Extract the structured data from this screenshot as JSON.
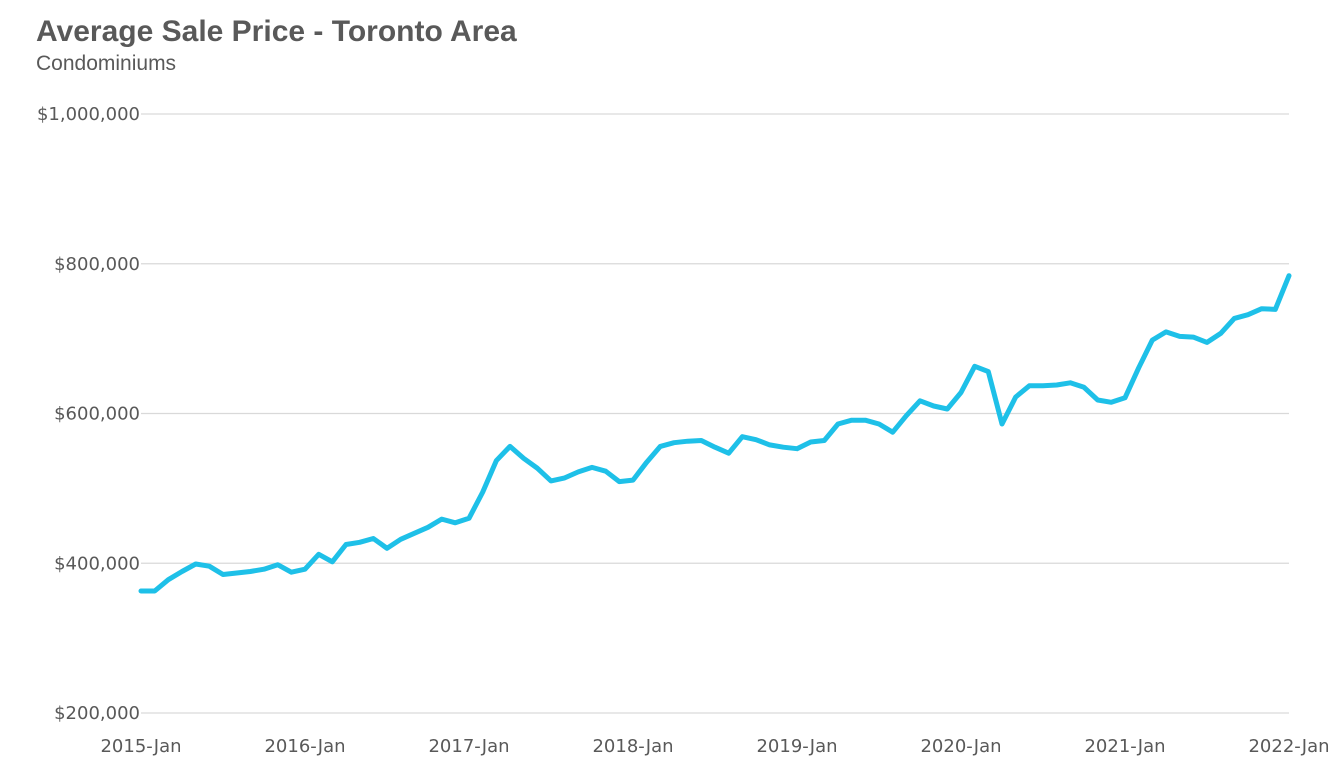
{
  "chart_data": {
    "type": "line",
    "title": "Average Sale Price - Toronto Area",
    "subtitle": "Condominiums",
    "xlabel": "",
    "ylabel": "",
    "ylim": [
      200000,
      1000000
    ],
    "y_ticks": [
      200000,
      400000,
      600000,
      800000,
      1000000
    ],
    "y_tick_labels": [
      "$200,000",
      "$400,000",
      "$600,000",
      "$800,000",
      "$1,000,000"
    ],
    "x_tick_labels": [
      "2015-Jan",
      "2016-Jan",
      "2017-Jan",
      "2018-Jan",
      "2019-Jan",
      "2020-Jan",
      "2021-Jan",
      "2022-Jan"
    ],
    "x_range": [
      "2015-01",
      "2022-01"
    ],
    "grid": true,
    "line_color": "#1ec0e8",
    "series": [
      {
        "x": [
          "2015-01",
          "2015-02",
          "2015-03",
          "2015-04",
          "2015-05",
          "2015-06",
          "2015-07",
          "2015-08",
          "2015-09",
          "2015-10",
          "2015-11",
          "2015-12",
          "2016-01",
          "2016-02",
          "2016-03",
          "2016-04",
          "2016-05",
          "2016-06",
          "2016-07",
          "2016-08",
          "2016-09",
          "2016-10",
          "2016-11",
          "2016-12",
          "2017-01",
          "2017-02",
          "2017-03",
          "2017-04",
          "2017-05",
          "2017-06",
          "2017-07",
          "2017-08",
          "2017-09",
          "2017-10",
          "2017-11",
          "2017-12",
          "2018-01",
          "2018-02",
          "2018-03",
          "2018-04",
          "2018-05",
          "2018-06",
          "2018-07",
          "2018-08",
          "2018-09",
          "2018-10",
          "2018-11",
          "2018-12",
          "2019-01",
          "2019-02",
          "2019-03",
          "2019-04",
          "2019-05",
          "2019-06",
          "2019-07",
          "2019-08",
          "2019-09",
          "2019-10",
          "2019-11",
          "2019-12",
          "2020-01",
          "2020-02",
          "2020-03",
          "2020-04",
          "2020-05",
          "2020-06",
          "2020-07",
          "2020-08",
          "2020-09",
          "2020-10",
          "2020-11",
          "2020-12",
          "2021-01",
          "2021-02",
          "2021-03",
          "2021-04",
          "2021-05",
          "2021-06",
          "2021-07",
          "2021-08",
          "2021-09",
          "2021-10",
          "2021-11",
          "2021-12",
          "2022-01"
        ],
        "values": [
          363000,
          363000,
          378000,
          389000,
          399000,
          396000,
          385000,
          387000,
          389000,
          392000,
          398000,
          388000,
          392000,
          412000,
          402000,
          425000,
          428000,
          433000,
          420000,
          432000,
          440000,
          448000,
          459000,
          454000,
          460000,
          495000,
          537000,
          556000,
          540000,
          527000,
          510000,
          514000,
          522000,
          528000,
          523000,
          509000,
          511000,
          535000,
          556000,
          561000,
          563000,
          564000,
          555000,
          547000,
          569000,
          565000,
          558000,
          555000,
          553000,
          562000,
          564000,
          586000,
          591000,
          591000,
          586000,
          575000,
          597000,
          617000,
          610000,
          606000,
          628000,
          663000,
          656000,
          586000,
          622000,
          637000,
          637000,
          638000,
          641000,
          635000,
          618000,
          615000,
          621000,
          661000,
          698000,
          709000,
          703000,
          702000,
          695000,
          707000,
          727000,
          732000,
          740000,
          739000,
          784000
        ]
      }
    ]
  }
}
